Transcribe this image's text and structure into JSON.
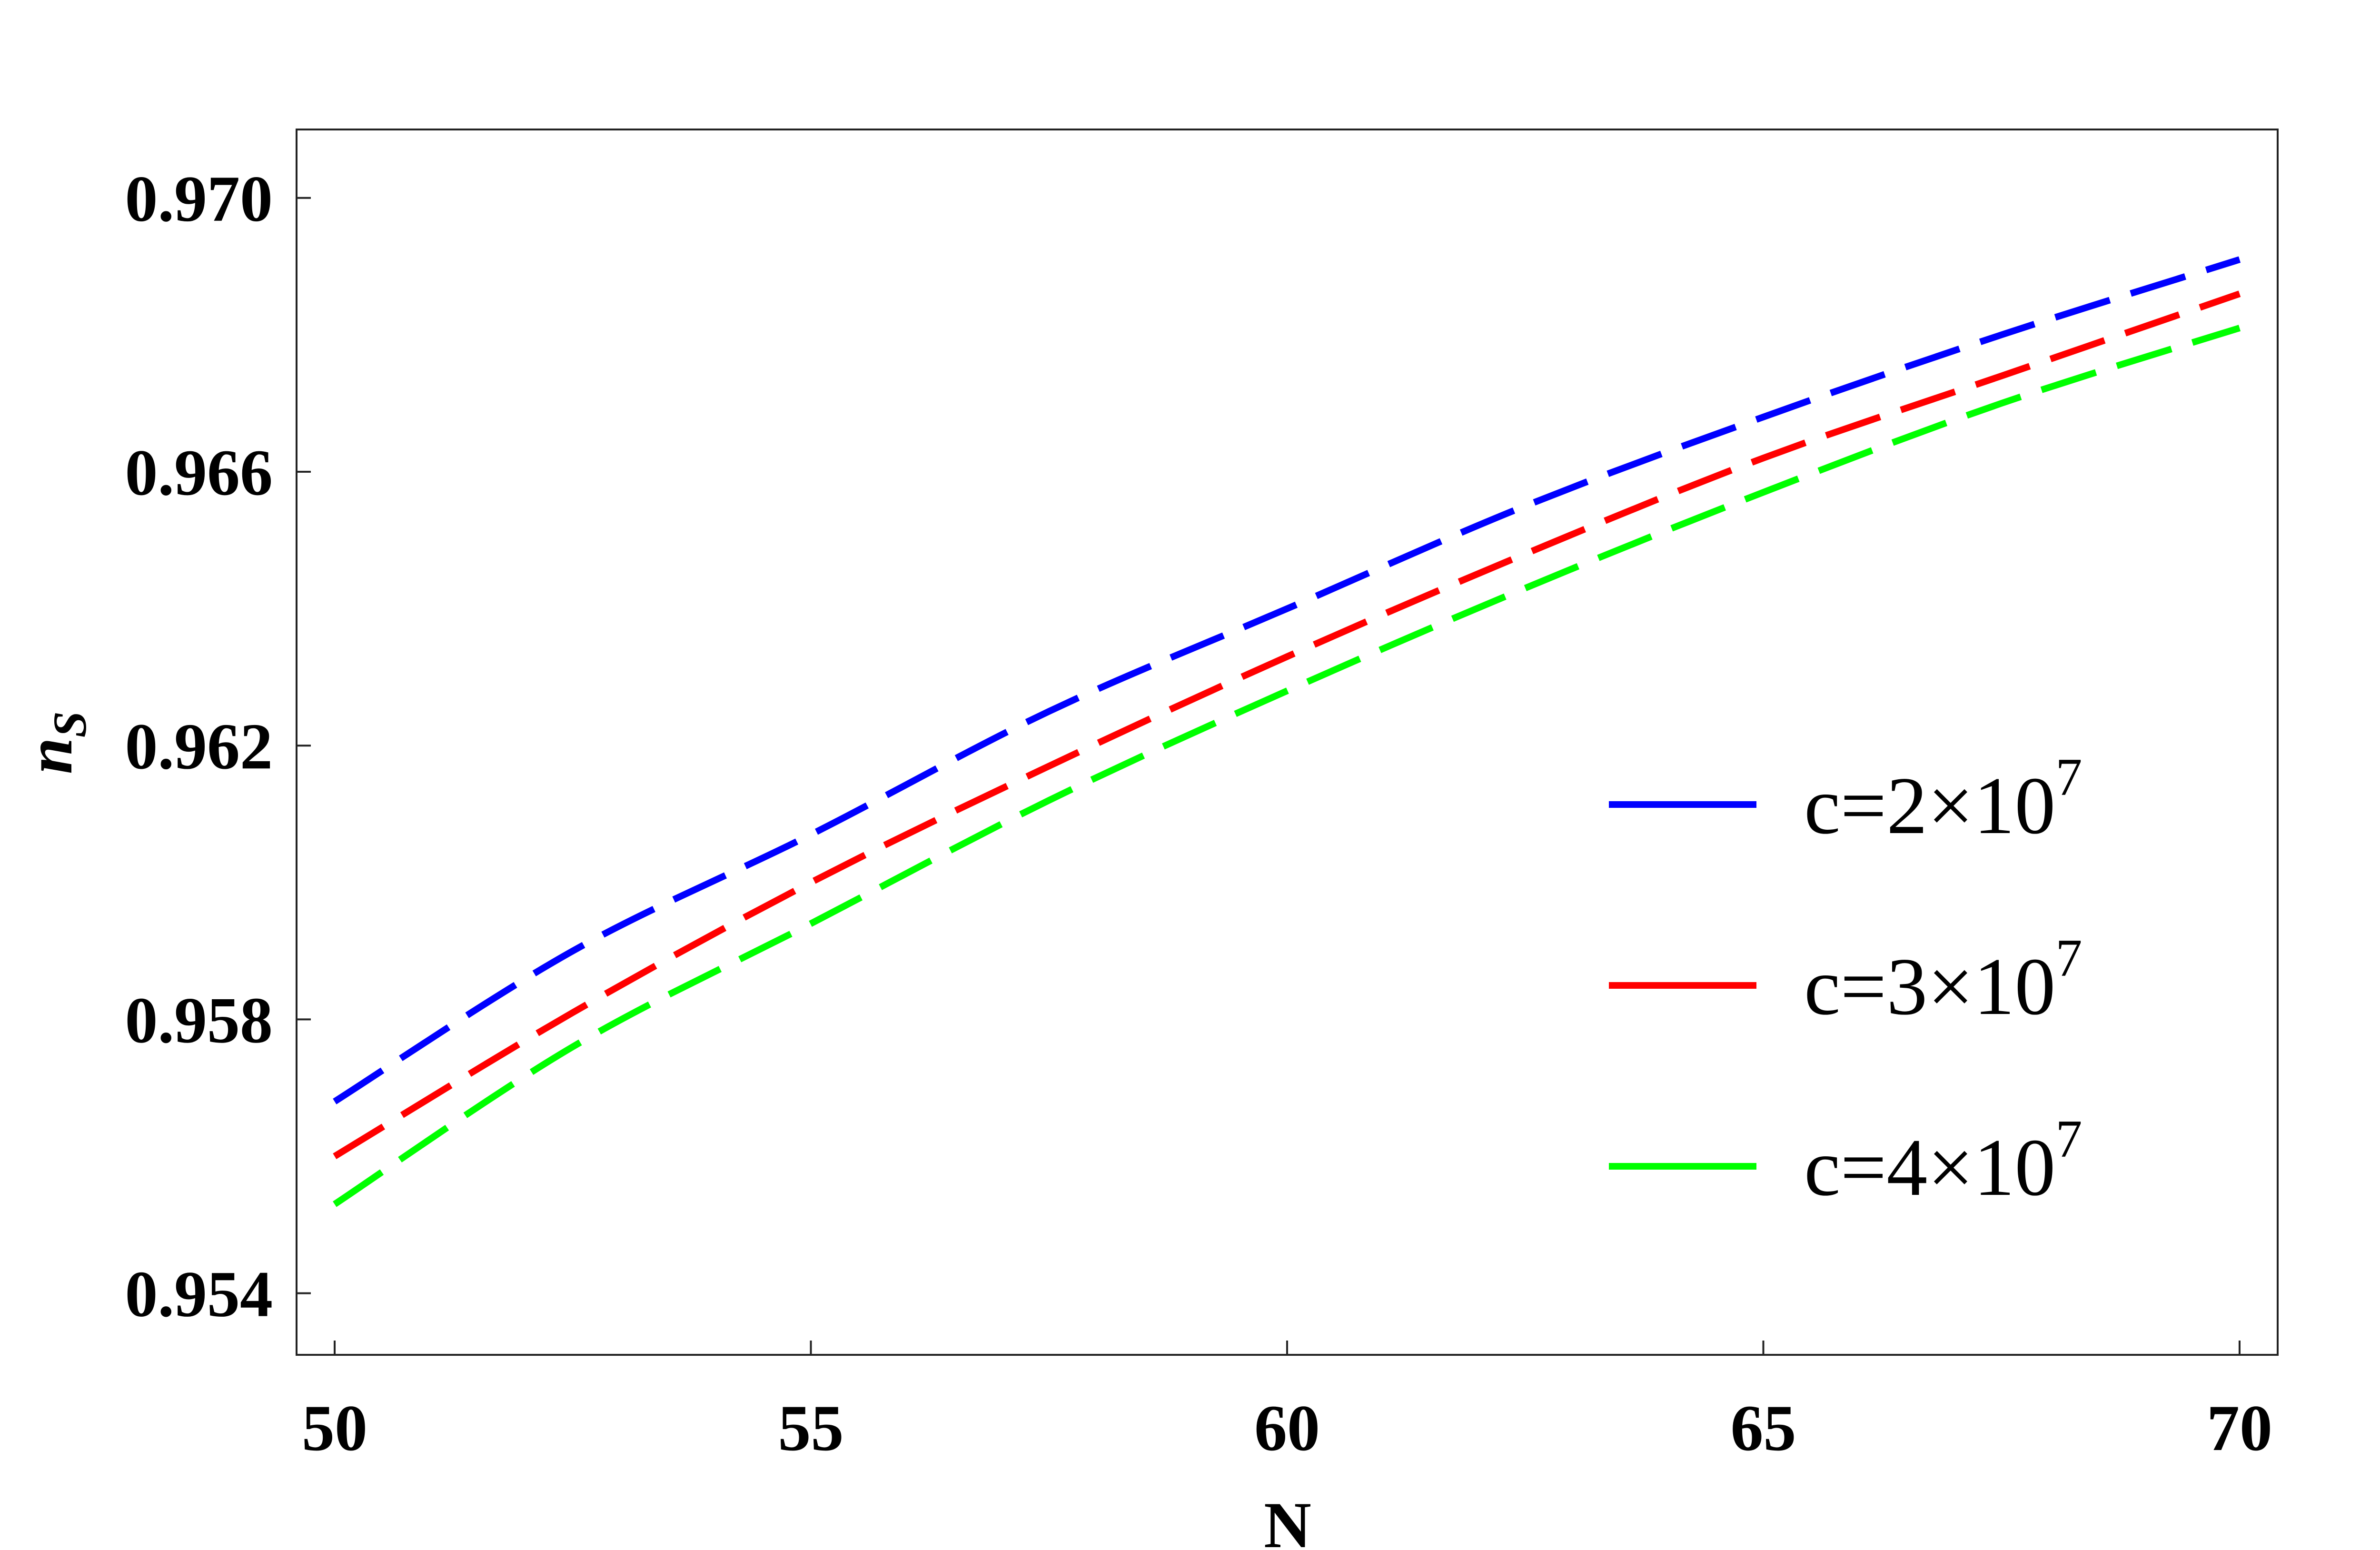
{
  "chart_data": {
    "type": "line",
    "xlabel": "N",
    "ylabel_main": "n",
    "ylabel_sub": "S",
    "xlim": [
      49.6,
      70.4
    ],
    "ylim": [
      0.9531,
      0.971
    ],
    "x_ticks": [
      50,
      55,
      60,
      65,
      70
    ],
    "x_tick_labels": [
      "50",
      "55",
      "60",
      "65",
      "70"
    ],
    "y_ticks": [
      0.954,
      0.958,
      0.962,
      0.966,
      0.97
    ],
    "y_tick_labels": [
      "0.954",
      "0.958",
      "0.962",
      "0.966",
      "0.970"
    ],
    "grid": false,
    "legend_position": "bottom-right",
    "x": [
      50,
      52.5,
      55,
      57.5,
      60,
      62.5,
      65,
      67.5,
      70
    ],
    "series": [
      {
        "label_base": "c=2×10",
        "label_exp": "7",
        "color": "#0000ff",
        "style": "dashed",
        "values": [
          0.9568,
          0.959,
          0.9607,
          0.9625,
          0.964,
          0.9655,
          0.9668,
          0.968,
          0.9691
        ]
      },
      {
        "label_base": "c=3×10",
        "label_exp": "7",
        "color": "#ff0000",
        "style": "dashed",
        "values": [
          0.956,
          0.9581,
          0.96,
          0.9617,
          0.9633,
          0.9648,
          0.9662,
          0.9674,
          0.9686
        ]
      },
      {
        "label_base": "c=4×10",
        "label_exp": "7",
        "color": "#00ff00",
        "style": "dashed",
        "values": [
          0.9553,
          0.9576,
          0.9594,
          0.9612,
          0.9628,
          0.9643,
          0.9657,
          0.967,
          0.9681
        ]
      }
    ]
  }
}
